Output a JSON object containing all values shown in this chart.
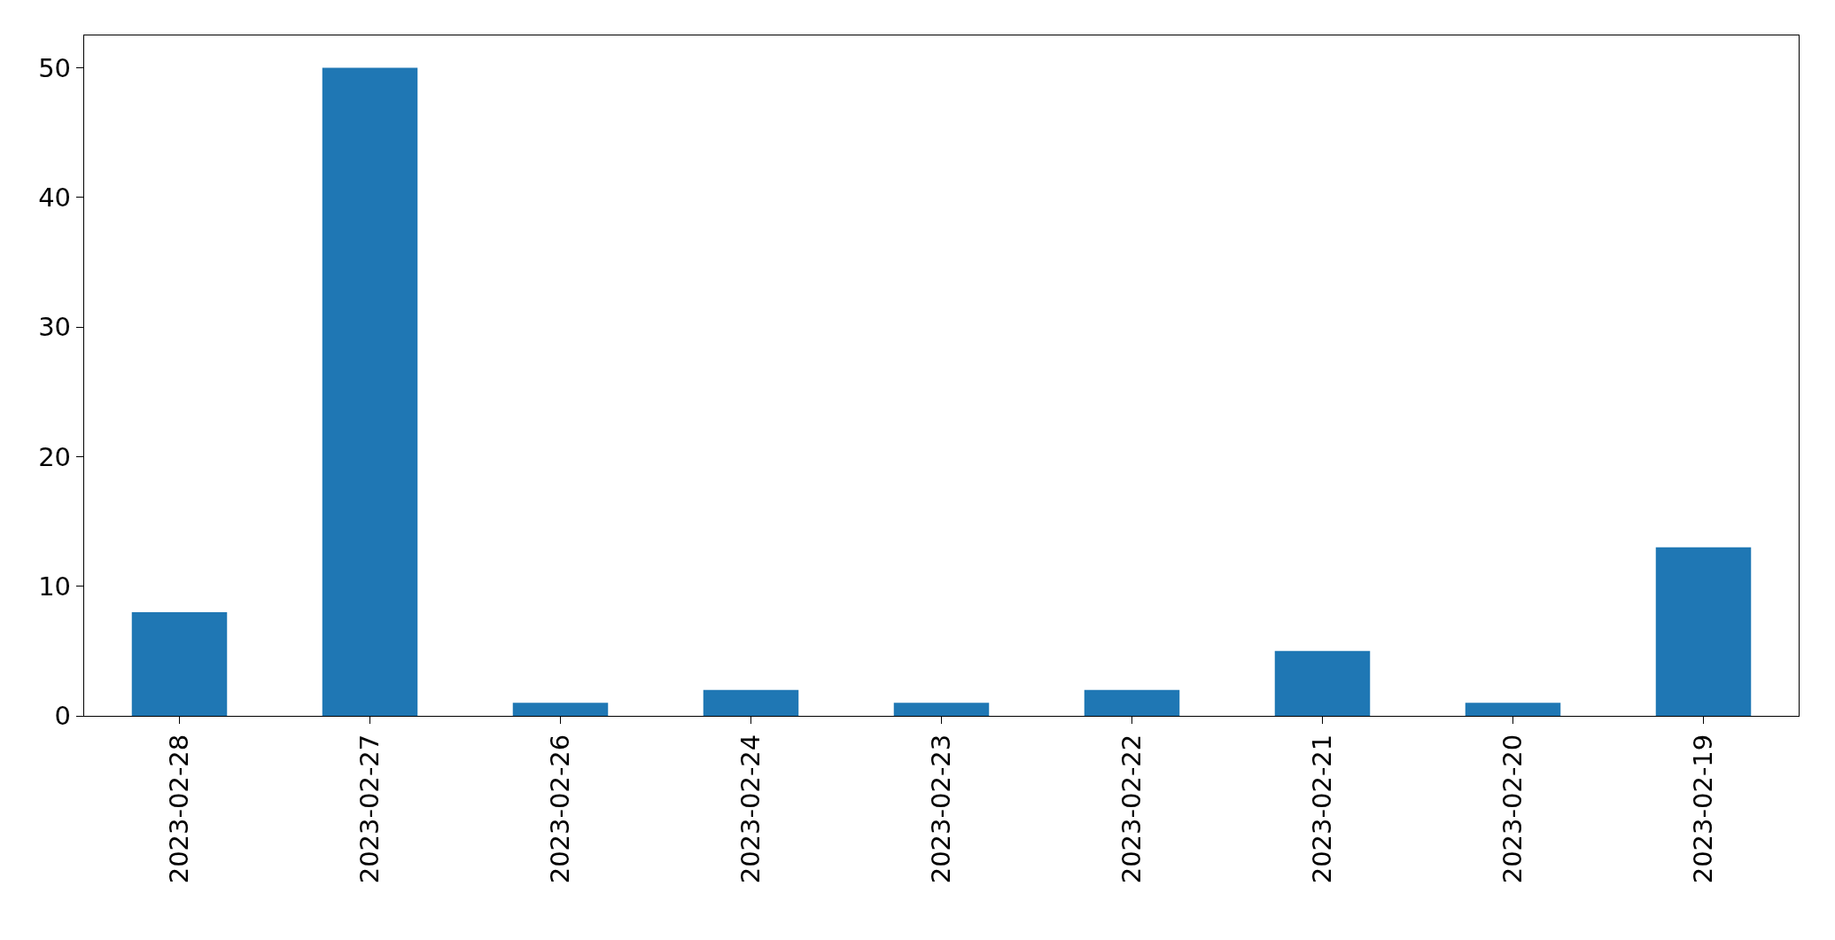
{
  "chart_data": {
    "type": "bar",
    "categories": [
      "2023-02-28",
      "2023-02-27",
      "2023-02-26",
      "2023-02-24",
      "2023-02-23",
      "2023-02-22",
      "2023-02-21",
      "2023-02-20",
      "2023-02-19"
    ],
    "values": [
      8,
      50,
      1,
      2,
      1,
      2,
      5,
      1,
      13
    ],
    "color": "#1f77b4",
    "ylim": [
      0,
      52.5
    ],
    "yticks": [
      0,
      10,
      20,
      30,
      40,
      50
    ],
    "grid": false,
    "legend": false
  }
}
